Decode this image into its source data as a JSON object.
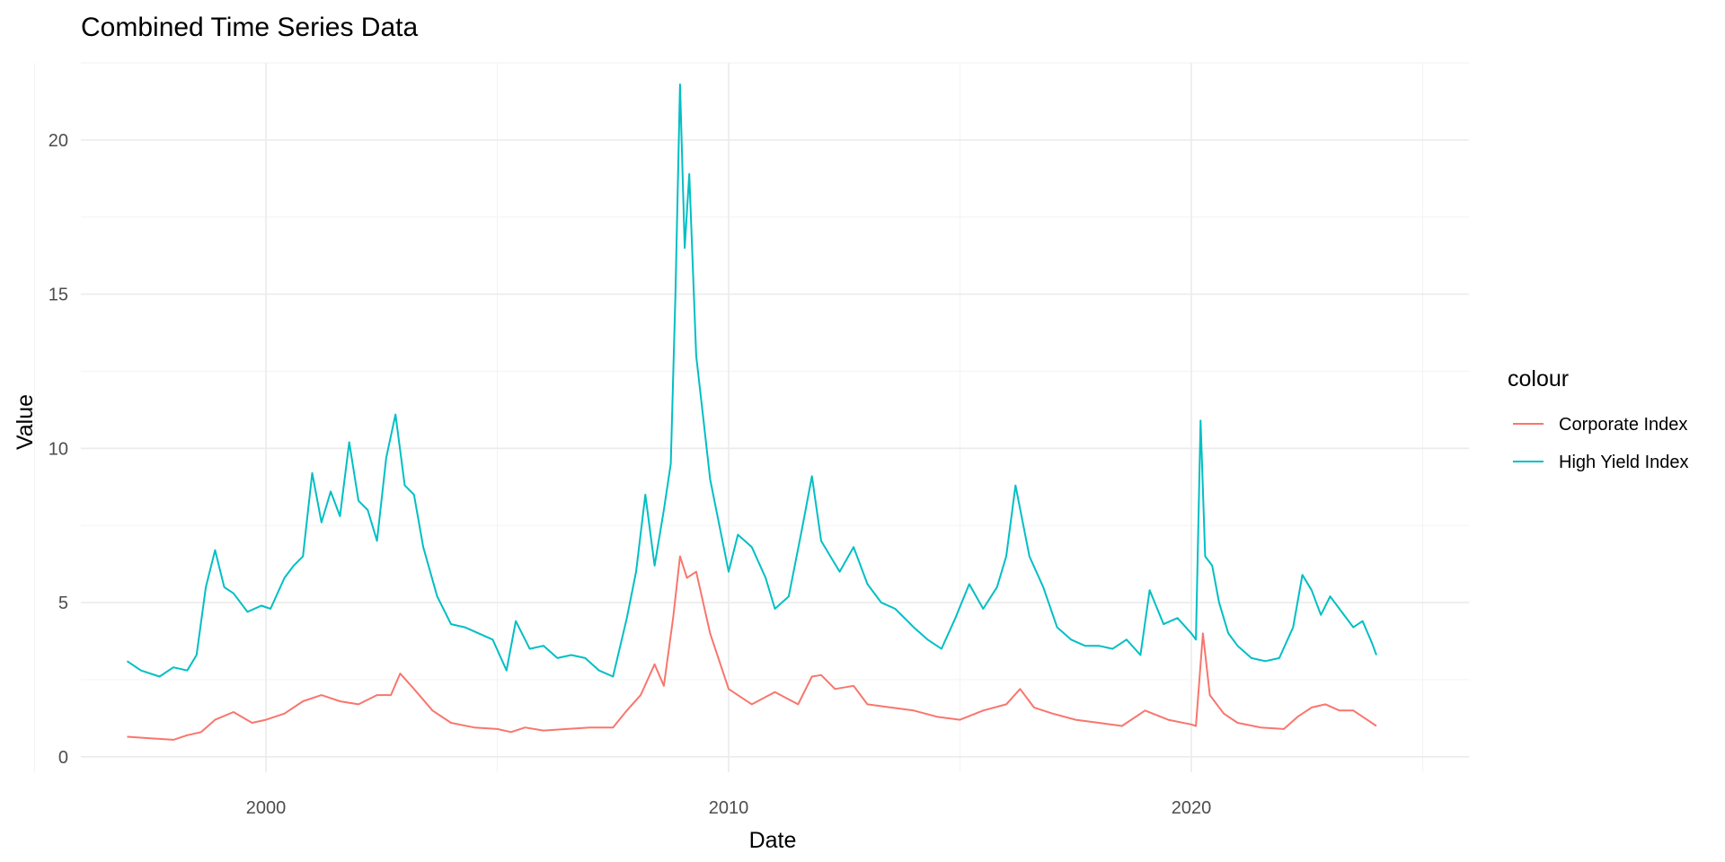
{
  "chart_data": {
    "type": "line",
    "title": "Combined Time Series Data",
    "xlabel": "Date",
    "ylabel": "Value",
    "xlim": [
      1996.0,
      2026.0
    ],
    "ylim": [
      -0.5,
      22.5
    ],
    "x_ticks": [
      2000,
      2010,
      2020
    ],
    "x_tick_labels": [
      "2000",
      "2010",
      "2020"
    ],
    "y_ticks": [
      0,
      5,
      10,
      15,
      20
    ],
    "y_tick_labels": [
      "0",
      "5",
      "10",
      "15",
      "20"
    ],
    "grid": true,
    "legend": {
      "title": "colour",
      "placement": "right"
    },
    "series": [
      {
        "name": "Corporate Index",
        "color": "#F8766D",
        "x": [
          1997.0,
          1997.5,
          1998.0,
          1998.3,
          1998.6,
          1998.9,
          1999.3,
          1999.7,
          2000.0,
          2000.4,
          2000.8,
          2001.2,
          2001.6,
          2002.0,
          2002.4,
          2002.7,
          2002.9,
          2003.2,
          2003.6,
          2004.0,
          2004.5,
          2005.0,
          2005.3,
          2005.6,
          2006.0,
          2006.5,
          2007.0,
          2007.5,
          2007.8,
          2008.1,
          2008.4,
          2008.6,
          2008.8,
          2008.95,
          2009.1,
          2009.3,
          2009.6,
          2010.0,
          2010.5,
          2011.0,
          2011.5,
          2011.8,
          2012.0,
          2012.3,
          2012.7,
          2013.0,
          2013.5,
          2014.0,
          2014.5,
          2015.0,
          2015.5,
          2016.0,
          2016.3,
          2016.6,
          2017.0,
          2017.5,
          2018.0,
          2018.5,
          2019.0,
          2019.5,
          2020.0,
          2020.1,
          2020.25,
          2020.4,
          2020.7,
          2021.0,
          2021.5,
          2022.0,
          2022.3,
          2022.6,
          2022.9,
          2023.2,
          2023.5,
          2023.8,
          2024.0
        ],
        "values": [
          0.65,
          0.6,
          0.55,
          0.7,
          0.8,
          1.2,
          1.45,
          1.1,
          1.2,
          1.4,
          1.8,
          2.0,
          1.8,
          1.7,
          2.0,
          2.0,
          2.7,
          2.2,
          1.5,
          1.1,
          0.95,
          0.9,
          0.8,
          0.95,
          0.85,
          0.9,
          0.95,
          0.95,
          1.5,
          2.0,
          3.0,
          2.3,
          4.5,
          6.5,
          5.8,
          6.0,
          4.0,
          2.2,
          1.7,
          2.1,
          1.7,
          2.6,
          2.65,
          2.2,
          2.3,
          1.7,
          1.6,
          1.5,
          1.3,
          1.2,
          1.5,
          1.7,
          2.2,
          1.6,
          1.4,
          1.2,
          1.1,
          1.0,
          1.5,
          1.2,
          1.05,
          1.0,
          4.0,
          2.0,
          1.4,
          1.1,
          0.95,
          0.9,
          1.3,
          1.6,
          1.7,
          1.5,
          1.5,
          1.2,
          1.0
        ]
      },
      {
        "name": "High Yield Index",
        "color": "#00BFC4",
        "x": [
          1997.0,
          1997.3,
          1997.7,
          1998.0,
          1998.3,
          1998.5,
          1998.7,
          1998.9,
          1999.1,
          1999.3,
          1999.6,
          1999.9,
          2000.1,
          2000.4,
          2000.6,
          2000.8,
          2001.0,
          2001.2,
          2001.4,
          2001.6,
          2001.8,
          2002.0,
          2002.2,
          2002.4,
          2002.6,
          2002.8,
          2003.0,
          2003.2,
          2003.4,
          2003.7,
          2004.0,
          2004.3,
          2004.6,
          2004.9,
          2005.2,
          2005.4,
          2005.7,
          2006.0,
          2006.3,
          2006.6,
          2006.9,
          2007.2,
          2007.5,
          2007.8,
          2008.0,
          2008.2,
          2008.4,
          2008.6,
          2008.75,
          2008.85,
          2008.95,
          2009.05,
          2009.15,
          2009.3,
          2009.45,
          2009.6,
          2009.8,
          2010.0,
          2010.2,
          2010.5,
          2010.8,
          2011.0,
          2011.3,
          2011.6,
          2011.8,
          2012.0,
          2012.2,
          2012.4,
          2012.7,
          2013.0,
          2013.3,
          2013.6,
          2014.0,
          2014.3,
          2014.6,
          2014.9,
          2015.2,
          2015.5,
          2015.8,
          2016.0,
          2016.2,
          2016.5,
          2016.8,
          2017.1,
          2017.4,
          2017.7,
          2018.0,
          2018.3,
          2018.6,
          2018.9,
          2019.1,
          2019.4,
          2019.7,
          2020.0,
          2020.1,
          2020.2,
          2020.3,
          2020.45,
          2020.6,
          2020.8,
          2021.0,
          2021.3,
          2021.6,
          2021.9,
          2022.2,
          2022.4,
          2022.6,
          2022.8,
          2023.0,
          2023.2,
          2023.5,
          2023.7,
          2023.9,
          2024.0
        ],
        "values": [
          3.1,
          2.8,
          2.6,
          2.9,
          2.8,
          3.3,
          5.5,
          6.7,
          5.5,
          5.3,
          4.7,
          4.9,
          4.8,
          5.8,
          6.2,
          6.5,
          9.2,
          7.6,
          8.6,
          7.8,
          10.2,
          8.3,
          8.0,
          7.0,
          9.7,
          11.1,
          8.8,
          8.5,
          6.8,
          5.2,
          4.3,
          4.2,
          4.0,
          3.8,
          2.8,
          4.4,
          3.5,
          3.6,
          3.2,
          3.3,
          3.2,
          2.8,
          2.6,
          4.5,
          6.0,
          8.5,
          6.2,
          8.0,
          9.5,
          15.0,
          21.8,
          16.5,
          18.9,
          13.0,
          11.0,
          9.0,
          7.5,
          6.0,
          7.2,
          6.8,
          5.8,
          4.8,
          5.2,
          7.5,
          9.1,
          7.0,
          6.5,
          6.0,
          6.8,
          5.6,
          5.0,
          4.8,
          4.2,
          3.8,
          3.5,
          4.5,
          5.6,
          4.8,
          5.5,
          6.5,
          8.8,
          6.5,
          5.5,
          4.2,
          3.8,
          3.6,
          3.6,
          3.5,
          3.8,
          3.3,
          5.4,
          4.3,
          4.5,
          4.0,
          3.8,
          10.9,
          6.5,
          6.2,
          5.0,
          4.0,
          3.6,
          3.2,
          3.1,
          3.2,
          4.2,
          5.9,
          5.4,
          4.6,
          5.2,
          4.8,
          4.2,
          4.4,
          3.7,
          3.3
        ]
      }
    ]
  }
}
